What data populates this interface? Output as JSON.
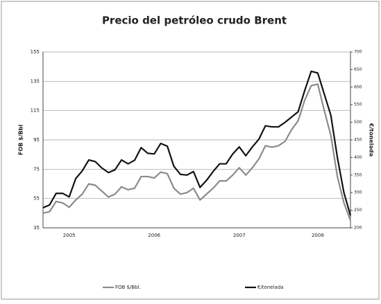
{
  "chart_data": {
    "type": "line",
    "title": "Precio del petróleo crudo Brent",
    "y_label": "FOB $/Bbl",
    "y2_label": "€/tonelada",
    "categories": [
      null,
      null,
      null,
      null,
      "2005",
      null,
      null,
      null,
      null,
      null,
      null,
      null,
      null,
      null,
      null,
      null,
      null,
      "2006",
      null,
      null,
      null,
      null,
      null,
      null,
      null,
      null,
      null,
      null,
      null,
      null,
      "2007",
      null,
      null,
      null,
      null,
      null,
      null,
      null,
      null,
      null,
      null,
      null,
      "2008",
      null,
      null,
      null,
      null,
      null
    ],
    "series": [
      {
        "name": "FOB $/Bbl.",
        "color": "#8a8a8a",
        "values": [
          45,
          46,
          53,
          52,
          49,
          54,
          58,
          65,
          64,
          60,
          56,
          58,
          63,
          61,
          62,
          70,
          70,
          69,
          73,
          72,
          62,
          58,
          59,
          62,
          54,
          58,
          62,
          67,
          67,
          71,
          76,
          71,
          76,
          82,
          91,
          90,
          91,
          94,
          102,
          108,
          122,
          132,
          133,
          115,
          98,
          70,
          52,
          40
        ]
      },
      {
        "name": "€/tonelada",
        "color": "#111111",
        "axis": "y2",
        "values": [
          257,
          265,
          298,
          298,
          288,
          340,
          362,
          393,
          388,
          370,
          357,
          365,
          393,
          382,
          392,
          428,
          412,
          410,
          440,
          432,
          375,
          352,
          350,
          360,
          315,
          335,
          360,
          382,
          382,
          410,
          430,
          405,
          430,
          452,
          490,
          487,
          487,
          500,
          515,
          530,
          590,
          645,
          640,
          580,
          520,
          400,
          300,
          235
        ]
      }
    ],
    "ylim": [
      35,
      155
    ],
    "yticks": [
      35,
      55,
      75,
      95,
      115,
      135,
      155
    ],
    "y2lim": [
      200,
      700
    ],
    "y2ticks": [
      200,
      250,
      300,
      350,
      400,
      450,
      500,
      550,
      600,
      650,
      700
    ],
    "grid": true
  }
}
